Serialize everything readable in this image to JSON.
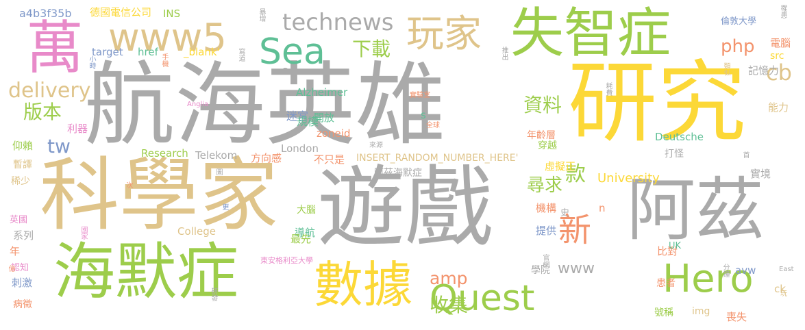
{
  "palette": {
    "grey": "#aaaaaa",
    "green": "#9dcd4b",
    "tan": "#dfc48a",
    "yellow": "#fcd837",
    "teal": "#5ebf95",
    "pink": "#e88ac9",
    "orange": "#f3936c",
    "blue": "#7f98c9"
  },
  "words": [
    {
      "text": "航海英雄",
      "color": "grey"
    },
    {
      "text": "研究",
      "color": "yellow"
    },
    {
      "text": "遊戲",
      "color": "grey"
    },
    {
      "text": "科學家",
      "color": "tan"
    },
    {
      "text": "海默症",
      "color": "green"
    },
    {
      "text": "阿茲",
      "color": "grey"
    },
    {
      "text": "失智症",
      "color": "green"
    },
    {
      "text": "數據",
      "color": "yellow"
    },
    {
      "text": "萬",
      "color": "pink"
    },
    {
      "text": "www5",
      "color": "tan"
    },
    {
      "text": "Sea",
      "color": "teal"
    },
    {
      "text": "玩家",
      "color": "tan"
    },
    {
      "text": "Quest",
      "color": "green"
    },
    {
      "text": "Hero",
      "color": "green"
    },
    {
      "text": "technews",
      "color": "grey"
    },
    {
      "text": "新",
      "color": "orange"
    },
    {
      "text": "delivery",
      "color": "tan"
    },
    {
      "text": "下載",
      "color": "green"
    },
    {
      "text": "cb",
      "color": "tan"
    },
    {
      "text": "php",
      "color": "orange"
    },
    {
      "text": "版本",
      "color": "green"
    },
    {
      "text": "資料",
      "color": "green"
    },
    {
      "text": "tw",
      "color": "blue"
    },
    {
      "text": "款",
      "color": "green"
    },
    {
      "text": "尋求",
      "color": "green"
    },
    {
      "text": "amp",
      "color": "orange"
    },
    {
      "text": "收集",
      "color": "green"
    },
    {
      "text": "www",
      "color": "grey"
    },
    {
      "text": "University",
      "color": "yellow"
    },
    {
      "text": "a4b3f35b",
      "color": "blue"
    },
    {
      "text": "德國電信公司",
      "color": "yellow"
    },
    {
      "text": "INS",
      "color": "green"
    },
    {
      "text": "target",
      "color": "blue"
    },
    {
      "text": "href",
      "color": "teal"
    },
    {
      "text": "_blank'",
      "color": "yellow"
    },
    {
      "text": "Alzheimer",
      "color": "teal"
    },
    {
      "text": "迷宮",
      "color": "blue"
    },
    {
      "text": "開放",
      "color": "teal"
    },
    {
      "text": "規模",
      "color": "teal"
    },
    {
      "text": "zoneid",
      "color": "orange"
    },
    {
      "text": "London",
      "color": "grey"
    },
    {
      "text": "Research",
      "color": "green"
    },
    {
      "text": "Telekom",
      "color": "grey"
    },
    {
      "text": "方向感",
      "color": "orange"
    },
    {
      "text": "不只是",
      "color": "orange"
    },
    {
      "text": "INSERT_RANDOM_NUMBER_HERE'",
      "color": "tan"
    },
    {
      "text": "阿茲海默症",
      "color": "grey"
    },
    {
      "text": "Deutsche",
      "color": "teal"
    },
    {
      "text": "打怪",
      "color": "grey"
    },
    {
      "text": "年齡層",
      "color": "orange"
    },
    {
      "text": "穿越",
      "color": "green"
    },
    {
      "text": "虛擬正",
      "color": "yellow"
    },
    {
      "text": "機構",
      "color": "orange"
    },
    {
      "text": "大腦",
      "color": "green"
    },
    {
      "text": "導航",
      "color": "teal"
    },
    {
      "text": "College",
      "color": "tan"
    },
    {
      "text": "最先",
      "color": "green"
    },
    {
      "text": "提供",
      "color": "blue"
    },
    {
      "text": "比對",
      "color": "orange"
    },
    {
      "text": "患者",
      "color": "orange"
    },
    {
      "text": "學院",
      "color": "grey"
    },
    {
      "text": "號稱",
      "color": "green"
    },
    {
      "text": "img",
      "color": "tan"
    },
    {
      "text": "喪失",
      "color": "orange"
    },
    {
      "text": "ck",
      "color": "tan"
    },
    {
      "text": "avw",
      "color": "blue"
    },
    {
      "text": "UK",
      "color": "teal"
    },
    {
      "text": "記憶力",
      "color": "grey"
    },
    {
      "text": "能力",
      "color": "tan"
    },
    {
      "text": "實境",
      "color": "grey"
    },
    {
      "text": "倫敦大學",
      "color": "blue"
    },
    {
      "text": "電腦",
      "color": "orange"
    },
    {
      "text": "src",
      "color": "yellow"
    },
    {
      "text": "系列",
      "color": "grey"
    },
    {
      "text": "英國",
      "color": "pink"
    },
    {
      "text": "年",
      "color": "orange"
    },
    {
      "text": "認知",
      "color": "pink"
    },
    {
      "text": "刺激",
      "color": "blue"
    },
    {
      "text": "病徵",
      "color": "orange"
    },
    {
      "text": "稀少",
      "color": "tan"
    },
    {
      "text": "暫譯",
      "color": "tan"
    },
    {
      "text": "仰賴",
      "color": "green"
    },
    {
      "text": "利器",
      "color": "pink"
    },
    {
      "text": "東安格利亞大學",
      "color": "pink"
    },
    {
      "text": "n",
      "color": "orange"
    },
    {
      "text": "史",
      "color": "grey"
    },
    {
      "text": "s",
      "color": "teal"
    },
    {
      "text": "a",
      "color": "grey"
    },
    {
      "text": "Anglia",
      "color": "pink"
    },
    {
      "text": "East",
      "color": "grey"
    },
    {
      "text": "玩",
      "color": "tan"
    },
    {
      "text": "首",
      "color": "grey"
    },
    {
      "text": "全球",
      "color": "orange"
    },
    {
      "text": "來源",
      "color": "grey"
    },
    {
      "text": "實驗室",
      "color": "orange"
    },
    {
      "text": "手機",
      "color": "orange"
    },
    {
      "text": "寫道",
      "color": "grey"
    },
    {
      "text": "小時",
      "color": "blue"
    },
    {
      "text": "推出",
      "color": "grey"
    },
    {
      "text": "罹患",
      "color": "grey"
    },
    {
      "text": "類似",
      "color": "tan"
    },
    {
      "text": "耗費",
      "color": "grey"
    },
    {
      "text": "暴增",
      "color": "grey"
    },
    {
      "text": "分鐘",
      "color": "grey"
    },
    {
      "text": "官網",
      "color": "grey"
    },
    {
      "text": "研發",
      "color": "grey"
    },
    {
      "text": "國家",
      "color": "pink"
    },
    {
      "text": "次",
      "color": "orange"
    },
    {
      "text": "圖",
      "color": "grey"
    },
    {
      "text": "更",
      "color": "blue"
    },
    {
      "text": "億",
      "color": "orange"
    }
  ]
}
